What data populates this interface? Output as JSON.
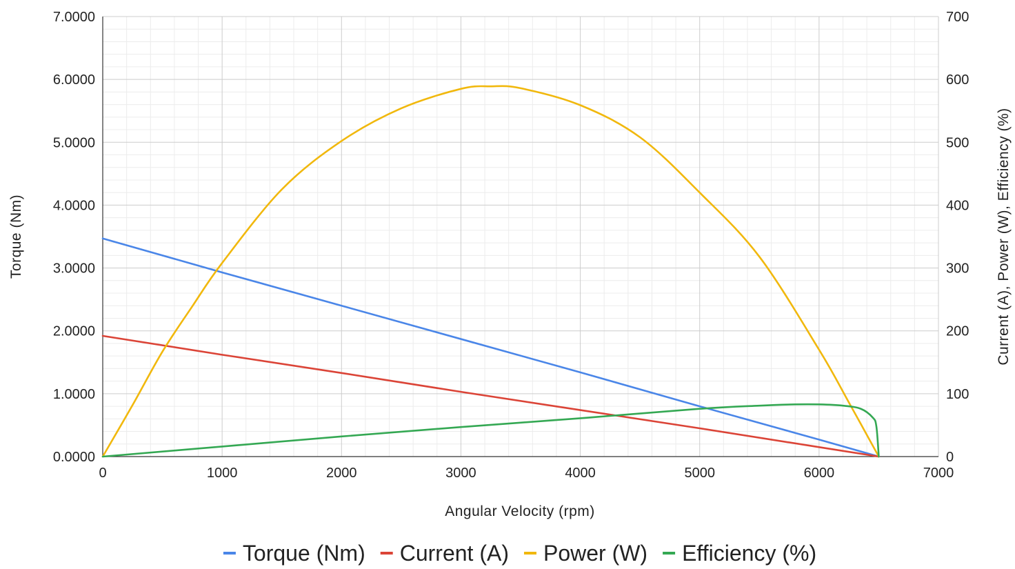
{
  "chart_data": {
    "type": "line",
    "title": "",
    "xlabel": "Angular Velocity (rpm)",
    "ylabel_left": "Torque (Nm)",
    "ylabel_right": "Current (A), Power (W), Efficiency (%)",
    "xlim": [
      0,
      7000
    ],
    "ylim_left": [
      0,
      7
    ],
    "ylim_right": [
      0,
      700
    ],
    "x_ticks": [
      "0",
      "1000",
      "2000",
      "3000",
      "4000",
      "5000",
      "6000",
      "7000"
    ],
    "y_left_ticks": [
      "0.0000",
      "1.0000",
      "2.0000",
      "3.0000",
      "4.0000",
      "5.0000",
      "6.0000",
      "7.0000"
    ],
    "y_right_ticks": [
      "0",
      "100",
      "200",
      "300",
      "400",
      "500",
      "600",
      "700"
    ],
    "grid": true,
    "legend_position": "bottom",
    "series": [
      {
        "name": "Torque (Nm)",
        "axis": "left",
        "color": "#4a86e8",
        "points": [
          [
            0,
            3.47
          ],
          [
            1000,
            2.93
          ],
          [
            2000,
            2.4
          ],
          [
            3000,
            1.87
          ],
          [
            4000,
            1.34
          ],
          [
            5000,
            0.8
          ],
          [
            6000,
            0.27
          ],
          [
            6500,
            0.0
          ]
        ]
      },
      {
        "name": "Current (A)",
        "axis": "left",
        "color": "#db4437",
        "points": [
          [
            0,
            1.92
          ],
          [
            1000,
            1.62
          ],
          [
            2000,
            1.33
          ],
          [
            3000,
            1.03
          ],
          [
            4000,
            0.74
          ],
          [
            5000,
            0.45
          ],
          [
            6000,
            0.15
          ],
          [
            6500,
            0.0
          ]
        ]
      },
      {
        "name": "Power (W)",
        "axis": "right",
        "color": "#f1b80d",
        "points": [
          [
            0,
            0
          ],
          [
            250,
            82
          ],
          [
            500,
            167
          ],
          [
            750,
            239
          ],
          [
            1000,
            308
          ],
          [
            1500,
            425
          ],
          [
            2000,
            502
          ],
          [
            2500,
            554
          ],
          [
            3000,
            585
          ],
          [
            3250,
            589
          ],
          [
            3500,
            586
          ],
          [
            4000,
            559
          ],
          [
            4500,
            508
          ],
          [
            5000,
            420
          ],
          [
            5500,
            318
          ],
          [
            6000,
            170
          ],
          [
            6250,
            86
          ],
          [
            6500,
            0
          ]
        ]
      },
      {
        "name": "Efficiency (%)",
        "axis": "right",
        "color": "#34a853",
        "points": [
          [
            0,
            0
          ],
          [
            1000,
            16
          ],
          [
            2000,
            32
          ],
          [
            3000,
            47
          ],
          [
            4000,
            61
          ],
          [
            5000,
            76
          ],
          [
            5500,
            81
          ],
          [
            5800,
            83
          ],
          [
            6000,
            83
          ],
          [
            6200,
            81
          ],
          [
            6350,
            76
          ],
          [
            6450,
            62
          ],
          [
            6480,
            48
          ],
          [
            6500,
            0
          ]
        ]
      }
    ]
  }
}
